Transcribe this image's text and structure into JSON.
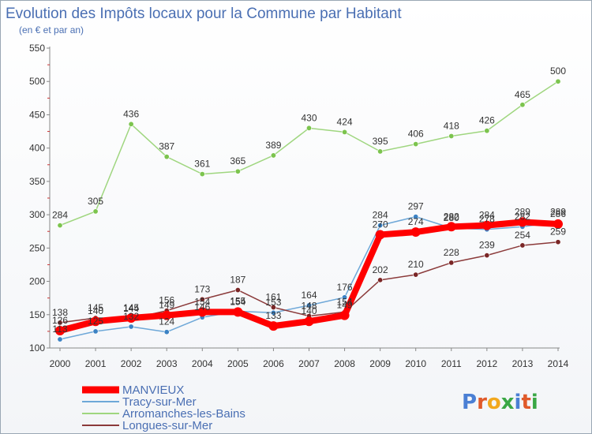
{
  "chart_data": {
    "type": "line",
    "title": "Evolution des Impôts locaux pour la Commune par Habitant",
    "subtitle": "(en € et par an)",
    "xlabel": "",
    "ylabel": "",
    "x": [
      2000,
      2001,
      2002,
      2003,
      2004,
      2005,
      2006,
      2007,
      2008,
      2009,
      2010,
      2011,
      2012,
      2013,
      2014
    ],
    "ylim": [
      100,
      550
    ],
    "yticks": [
      100,
      150,
      200,
      250,
      300,
      350,
      400,
      450,
      500,
      550
    ],
    "grid": false,
    "legend_position": "bottom-left",
    "series": [
      {
        "name": "MANVIEUX",
        "color": "#ff0000",
        "thick": true,
        "values": [
          126,
          140,
          145,
          149,
          154,
          154,
          133,
          140,
          149,
          270,
          274,
          282,
          284,
          289,
          286
        ],
        "labels": [
          "126",
          "140",
          "145",
          "149",
          "154",
          "154",
          "133",
          "140",
          "149",
          "270",
          "274",
          "282",
          "284",
          "289",
          "286"
        ]
      },
      {
        "name": "Tracy-sur-Mer",
        "color": "#6ea8d8",
        "marker_color": "#3b82c4",
        "values": [
          113,
          125,
          132,
          124,
          146,
          155,
          153,
          164,
          176,
          284,
          297,
          280,
          278,
          282,
          289
        ],
        "labels": [
          "113",
          "125",
          "132",
          "124",
          "146",
          "155",
          "153",
          "164",
          "176",
          "284",
          "297",
          "280",
          "278",
          "282",
          "289"
        ]
      },
      {
        "name": "Arromanches-les-Bains",
        "color": "#9fd67f",
        "marker_color": "#7cc44e",
        "values": [
          284,
          305,
          436,
          387,
          361,
          365,
          389,
          430,
          424,
          395,
          406,
          418,
          426,
          465,
          500
        ],
        "labels": [
          "284",
          "305",
          "436",
          "387",
          "361",
          "365",
          "389",
          "430",
          "424",
          "395",
          "406",
          "418",
          "426",
          "465",
          "500"
        ]
      },
      {
        "name": "Longues-sur-Mer",
        "color": "#8b3a3a",
        "marker_color": "#7a2626",
        "values": [
          138,
          145,
          144,
          156,
          173,
          187,
          161,
          148,
          154,
          202,
          210,
          228,
          239,
          254,
          259
        ],
        "labels": [
          "138",
          "145",
          "144",
          "156",
          "173",
          "187",
          "161",
          "148",
          "154",
          "202",
          "210",
          "228",
          "239",
          "254",
          "259"
        ]
      }
    ]
  },
  "brand": {
    "name": "Proxiti",
    "letters": [
      "P",
      "r",
      "o",
      "x",
      "i",
      "t",
      "i"
    ]
  },
  "colors": {
    "title": "#4a6fb3",
    "axis": "#888888",
    "minor_tick": "#cc3333",
    "brand_letters": [
      "#4a7fd4",
      "#e05a2a",
      "#f2a81d",
      "#3aa745",
      "#4a7fd4",
      "#e05a2a",
      "#3aa745"
    ]
  }
}
